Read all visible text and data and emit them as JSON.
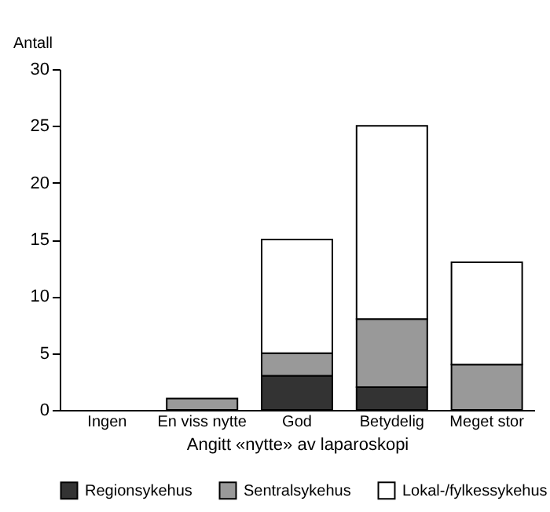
{
  "chart_data": {
    "type": "bar",
    "stacked": true,
    "xlabel": "Angitt «nytte» av laparoskopi",
    "ylabel": "Antall",
    "categories": [
      "Ingen",
      "En viss nytte",
      "God",
      "Betydelig",
      "Meget stor"
    ],
    "series": [
      {
        "name": "Regionsykehus",
        "color": "#333333",
        "values": [
          0,
          0,
          3,
          2,
          0
        ]
      },
      {
        "name": "Sentralsykehus",
        "color": "#999999",
        "values": [
          0,
          1,
          2,
          6,
          4
        ]
      },
      {
        "name": "Lokal-/fylkessykehus",
        "color": "#ffffff",
        "values": [
          0,
          0,
          10,
          17,
          9
        ]
      }
    ],
    "ylim": [
      0,
      30
    ],
    "yticks": [
      0,
      5,
      10,
      15,
      20,
      25,
      30
    ],
    "grid": false,
    "legend": "bottom"
  }
}
